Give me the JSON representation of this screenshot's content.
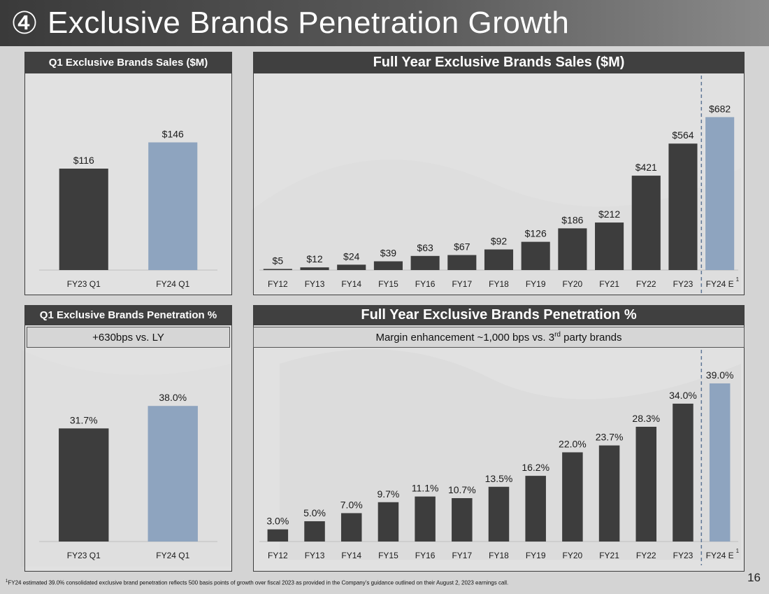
{
  "title": {
    "number": "④",
    "text": "Exclusive Brands Penetration Growth"
  },
  "colors": {
    "dark_bar": "#3d3d3d",
    "highlight_bar": "#8ea4bf",
    "header_bg": "#404040"
  },
  "chart_data": [
    {
      "id": "q1_sales",
      "type": "bar",
      "title": "Q1 Exclusive Brands Sales ($M)",
      "categories": [
        "FY23 Q1",
        "FY24 Q1"
      ],
      "values": [
        116,
        146
      ],
      "labels": [
        "$116",
        "$146"
      ],
      "highlight": [
        false,
        true
      ],
      "ylim": [
        0,
        200
      ]
    },
    {
      "id": "fy_sales",
      "type": "bar",
      "title": "Full Year Exclusive Brands Sales ($M)",
      "categories": [
        "FY12",
        "FY13",
        "FY14",
        "FY15",
        "FY16",
        "FY17",
        "FY18",
        "FY19",
        "FY20",
        "FY21",
        "FY22",
        "FY23",
        "FY24 E"
      ],
      "values": [
        5,
        12,
        24,
        39,
        63,
        67,
        92,
        126,
        186,
        212,
        421,
        564,
        682
      ],
      "labels": [
        "$5",
        "$12",
        "$24",
        "$39",
        "$63",
        "$67",
        "$92",
        "$126",
        "$186",
        "$212",
        "$421",
        "$564",
        "$682"
      ],
      "highlight": [
        false,
        false,
        false,
        false,
        false,
        false,
        false,
        false,
        false,
        false,
        false,
        false,
        true
      ],
      "footnote_marker": "1",
      "ylim": [
        0,
        780
      ]
    },
    {
      "id": "q1_pen",
      "type": "bar",
      "title": "Q1 Exclusive Brands Penetration %",
      "subtitle": "+630bps vs. LY",
      "categories": [
        "FY23 Q1",
        "FY24 Q1"
      ],
      "values": [
        31.7,
        38.0
      ],
      "labels": [
        "31.7%",
        "38.0%"
      ],
      "highlight": [
        false,
        true
      ],
      "ylim": [
        0,
        50
      ]
    },
    {
      "id": "fy_pen",
      "type": "bar",
      "title": "Full Year Exclusive Brands Penetration %",
      "subtitle_main": "Margin enhancement ~1,000 bps vs. 3",
      "subtitle_sup": "rd",
      "subtitle_end": " party brands",
      "categories": [
        "FY12",
        "FY13",
        "FY14",
        "FY15",
        "FY16",
        "FY17",
        "FY18",
        "FY19",
        "FY20",
        "FY21",
        "FY22",
        "FY23",
        "FY24 E"
      ],
      "values": [
        3.0,
        5.0,
        7.0,
        9.7,
        11.1,
        10.7,
        13.5,
        16.2,
        22.0,
        23.7,
        28.3,
        34.0,
        39.0
      ],
      "labels": [
        "3.0%",
        "5.0%",
        "7.0%",
        "9.7%",
        "11.1%",
        "10.7%",
        "13.5%",
        "16.2%",
        "22.0%",
        "23.7%",
        "28.3%",
        "34.0%",
        "39.0%"
      ],
      "highlight": [
        false,
        false,
        false,
        false,
        false,
        false,
        false,
        false,
        false,
        false,
        false,
        false,
        true
      ],
      "footnote_marker": "1",
      "ylim": [
        0,
        44
      ]
    }
  ],
  "footnote": {
    "marker": "1",
    "text": "FY24 estimated 39.0% consolidated exclusive brand penetration reflects 500 basis points of growth over fiscal 2023 as provided in the Company’s guidance outlined on their August 2, 2023 earnings call."
  },
  "page_number": "16"
}
